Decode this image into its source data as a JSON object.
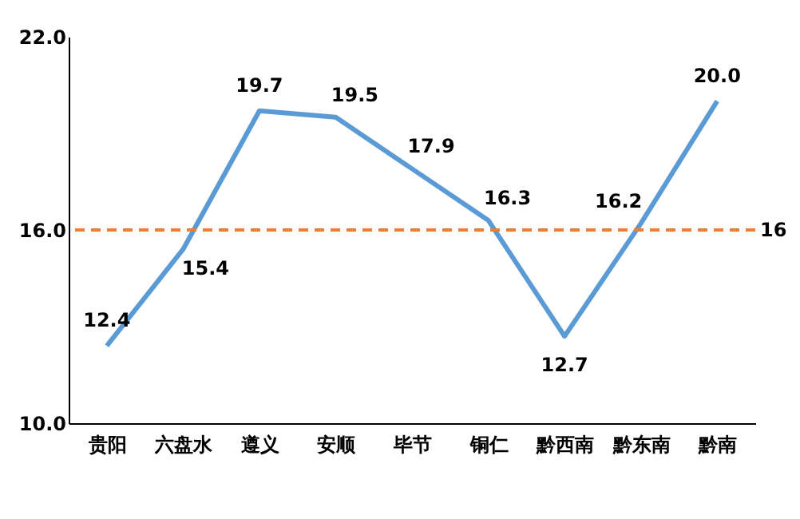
{
  "chart_data": {
    "type": "line",
    "categories": [
      "贵阳",
      "六盘水",
      "遵义",
      "安顺",
      "毕节",
      "铜仁",
      "黔西南",
      "黔东南",
      "黔南"
    ],
    "series": [
      {
        "color": "#5b9bd5",
        "values": [
          12.4,
          15.4,
          19.7,
          19.5,
          17.9,
          16.3,
          12.7,
          16.2,
          20.0
        ],
        "value_labels": [
          "12.4",
          "15.4",
          "19.7",
          "19.5",
          "17.9",
          "16.3",
          "12.7",
          "16.2",
          "20.0"
        ]
      }
    ],
    "ylim": [
      10,
      22
    ],
    "yticks": [
      {
        "value": 10,
        "label": "10.0"
      },
      {
        "value": 16,
        "label": "16.0"
      },
      {
        "value": 22,
        "label": "22.0"
      }
    ],
    "ref_lines": [
      {
        "axis": "y",
        "value": 16,
        "label": "16",
        "color": "#ed7d31",
        "line_style": "dashed"
      }
    ],
    "grid": false,
    "marker": "none",
    "line_style": "solid"
  }
}
